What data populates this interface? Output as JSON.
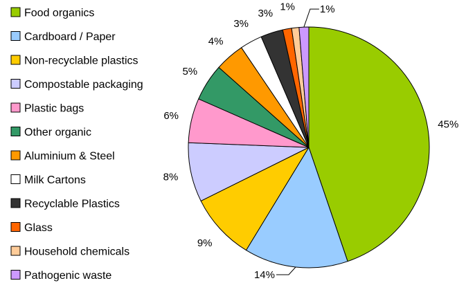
{
  "chart_data": {
    "type": "pie",
    "legend_position": "left",
    "start_angle_deg": 0,
    "direction": "clockwise",
    "slices": [
      {
        "label": "Food organics",
        "value": 45,
        "value_label": "45%",
        "color": "#99cc00"
      },
      {
        "label": "Cardboard / Paper",
        "value": 14,
        "value_label": "14%",
        "color": "#99ccff"
      },
      {
        "label": "Non-recyclable plastics",
        "value": 9,
        "value_label": "9%",
        "color": "#ffcc00"
      },
      {
        "label": "Compostable packaging",
        "value": 8,
        "value_label": "8%",
        "color": "#ccccff"
      },
      {
        "label": "Plastic bags",
        "value": 6,
        "value_label": "6%",
        "color": "#ff99cc"
      },
      {
        "label": "Other organic",
        "value": 5,
        "value_label": "5%",
        "color": "#339966"
      },
      {
        "label": "Aluminium & Steel",
        "value": 4,
        "value_label": "4%",
        "color": "#ff9900"
      },
      {
        "label": "Milk Cartons",
        "value": 3,
        "value_label": "3%",
        "color": "#ffffff"
      },
      {
        "label": "Recyclable Plastics",
        "value": 3,
        "value_label": "3%",
        "color": "#333333"
      },
      {
        "label": "Glass",
        "value": 1.2,
        "value_label": "1%",
        "color": "#ff6600"
      },
      {
        "label": "Household chemicals",
        "value": 1,
        "value_label": "",
        "color": "#ffcc99"
      },
      {
        "label": "Pathogenic waste",
        "value": 1.3,
        "value_label": "1%",
        "color": "#cc99ff"
      }
    ]
  }
}
